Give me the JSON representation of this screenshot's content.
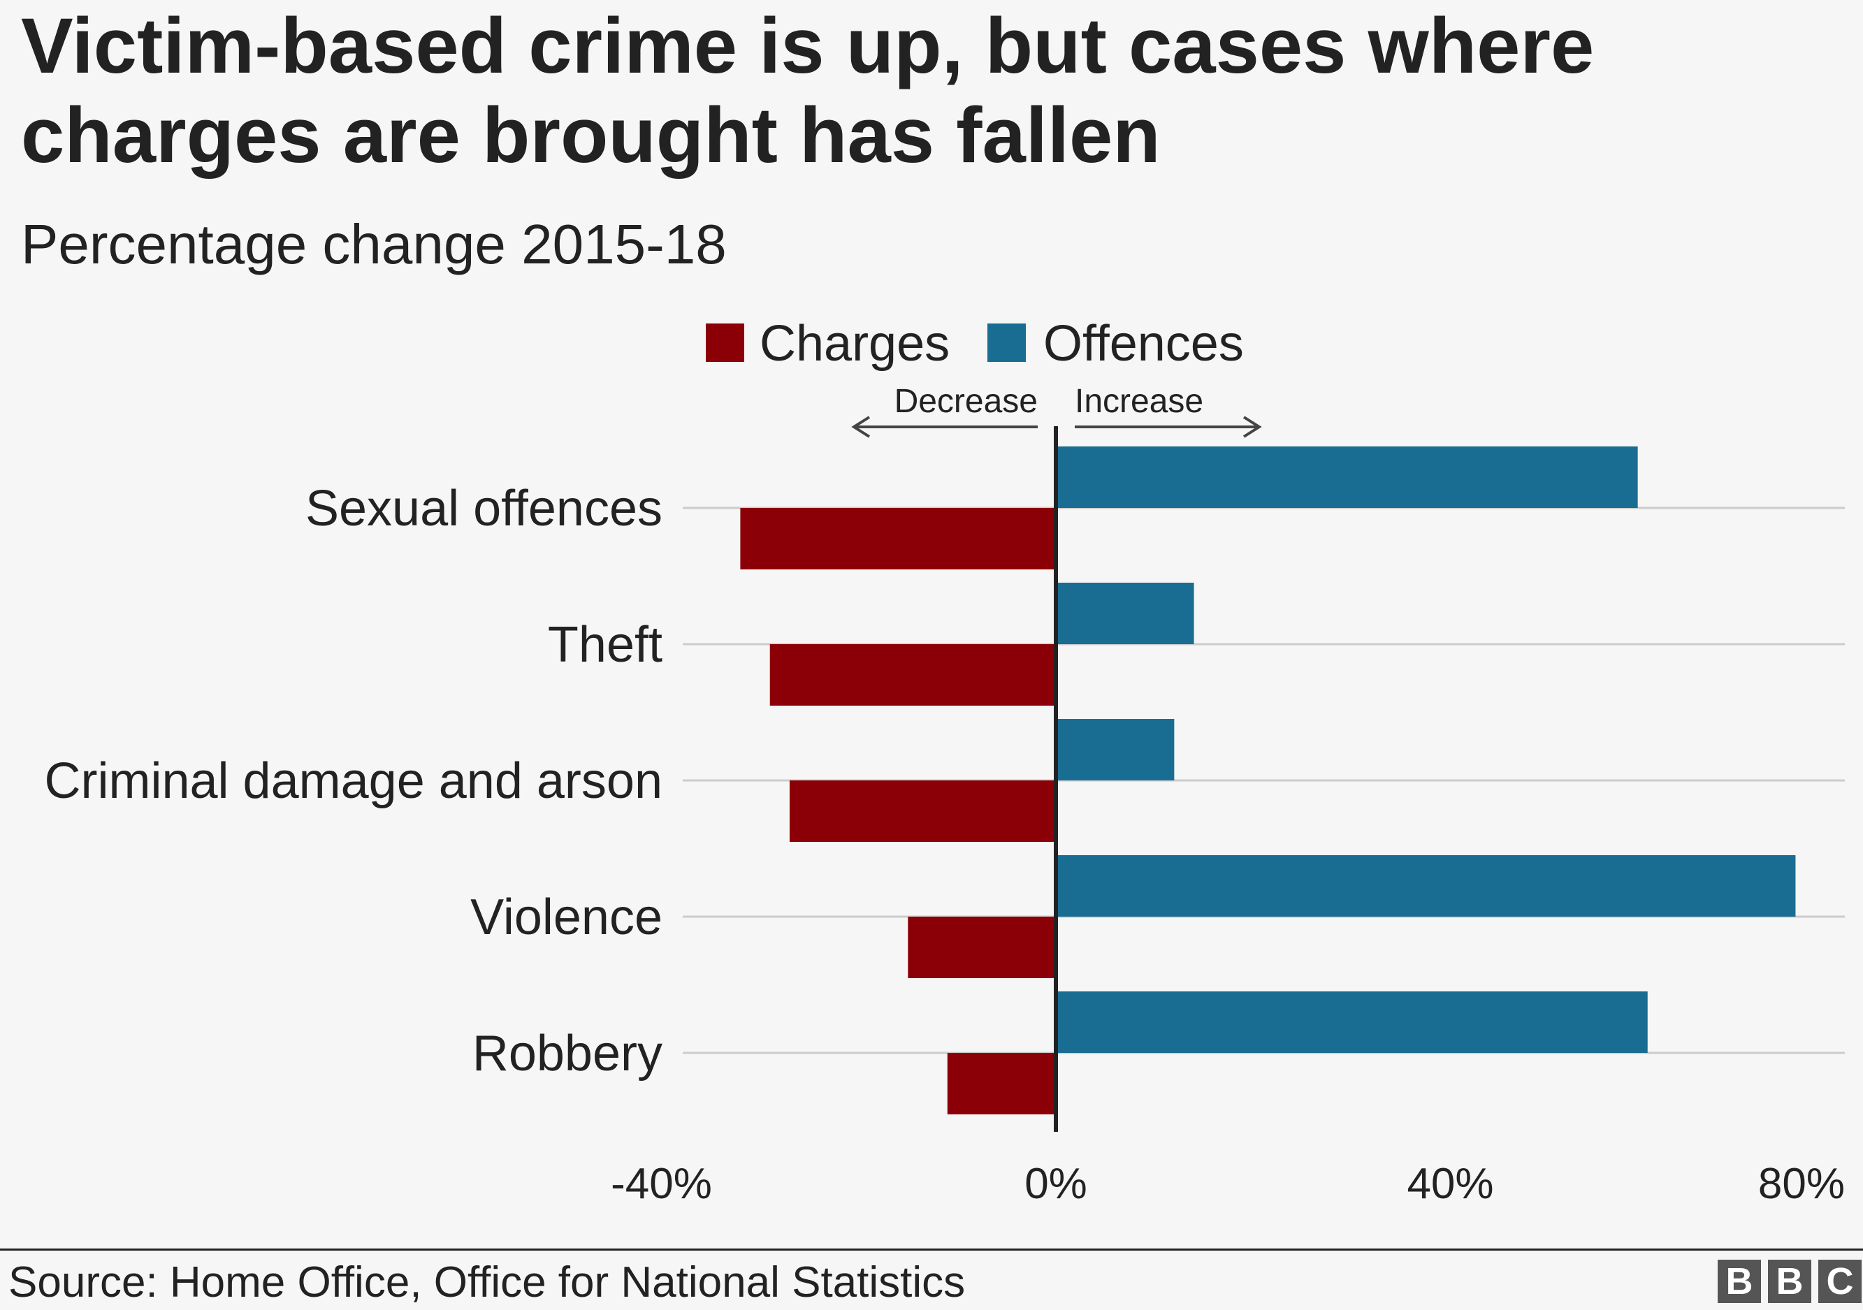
{
  "chart_data": {
    "type": "bar",
    "orientation": "horizontal",
    "title": "Victim-based crime is up, but cases where charges are brought has fallen",
    "subtitle": "Percentage change 2015-18",
    "categories": [
      "Sexual offences",
      "Theft",
      "Criminal damage and arson",
      "Violence",
      "Robbery"
    ],
    "series": [
      {
        "name": "Offences",
        "color": "#1a6d92",
        "values": [
          59,
          14,
          12,
          75,
          60
        ]
      },
      {
        "name": "Charges",
        "color": "#8b0006",
        "values": [
          -32,
          -29,
          -27,
          -15,
          -11
        ]
      }
    ],
    "legend": {
      "placement": "top",
      "order": [
        "Charges",
        "Offences"
      ]
    },
    "direction_labels": {
      "decrease": "Decrease",
      "increase": "Increase"
    },
    "xlim": [
      -40,
      80
    ],
    "xticks": [
      {
        "value": -40,
        "label": "-40%"
      },
      {
        "value": 0,
        "label": "0%"
      },
      {
        "value": 40,
        "label": "40%"
      },
      {
        "value": 80,
        "label": "80%"
      }
    ],
    "grid": true,
    "xlabel": "",
    "ylabel": ""
  },
  "footer": {
    "source": "Source: Home Office, Office for National Statistics",
    "logo": [
      "B",
      "B",
      "C"
    ]
  }
}
